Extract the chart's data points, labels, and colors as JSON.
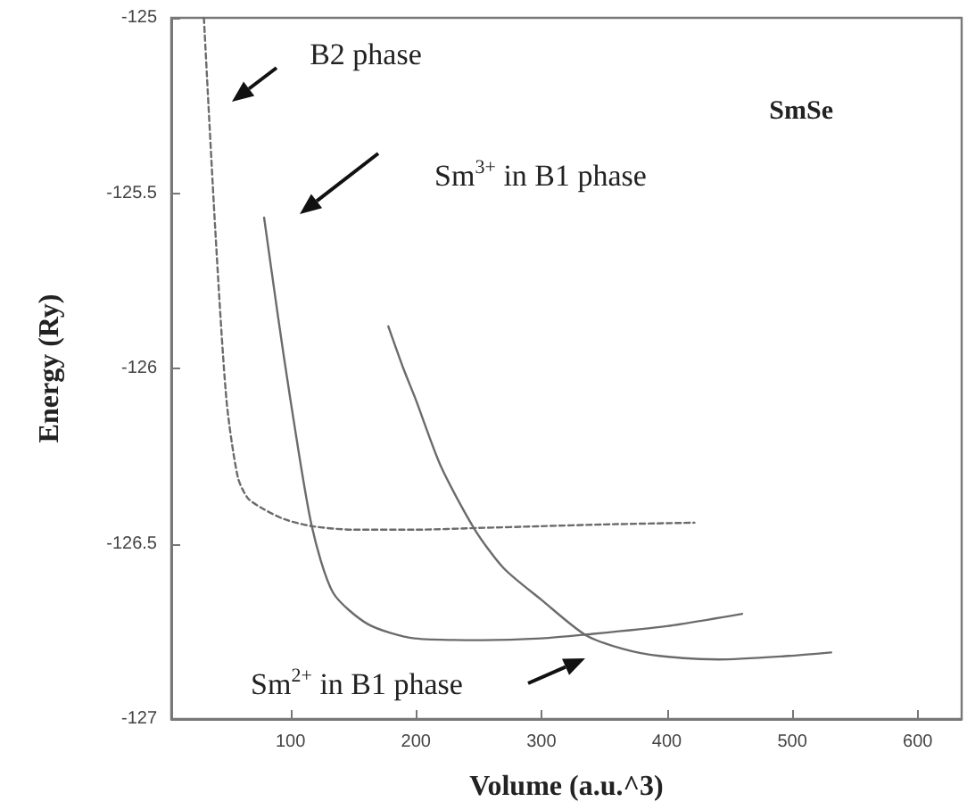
{
  "chart_data": {
    "type": "line",
    "title": "SmSe",
    "xlabel": "Volume (a.u.^3)",
    "ylabel": "Energy (Ry)",
    "xlim": [
      5,
      635
    ],
    "ylim": [
      -127,
      -125
    ],
    "xticks": [
      100,
      200,
      300,
      400,
      500,
      600
    ],
    "yticks": [
      -127,
      -126.5,
      -126,
      -125.5,
      -125
    ],
    "grid": false,
    "marker": "none",
    "series": [
      {
        "color": "#6b6b6b",
        "line_style": "dashed",
        "x": [
          31,
          40,
          49,
          58,
          66,
          78,
          95,
          117,
          150,
          200,
          250,
          300,
          350,
          422
        ],
        "values": [
          -125,
          -125.6,
          -126.09,
          -126.31,
          -126.37,
          -126.4,
          -126.43,
          -126.45,
          -126.46,
          -126.46,
          -126.455,
          -126.45,
          -126.445,
          -126.44
        ]
      },
      {
        "color": "#6b6b6b",
        "line_style": "solid",
        "x": [
          79,
          90,
          100,
          117,
          134,
          162,
          199,
          253,
          300,
          333,
          400,
          460
        ],
        "values": [
          -125.57,
          -125.85,
          -126.09,
          -126.45,
          -126.64,
          -126.73,
          -126.77,
          -126.775,
          -126.77,
          -126.76,
          -126.735,
          -126.7
        ]
      },
      {
        "color": "#6b6b6b",
        "line_style": "solid",
        "x": [
          178,
          190,
          200,
          220,
          247,
          270,
          300,
          335,
          365,
          394,
          441,
          497,
          531
        ],
        "values": [
          -125.88,
          -126.0,
          -126.09,
          -126.28,
          -126.46,
          -126.57,
          -126.66,
          -126.76,
          -126.8,
          -126.82,
          -126.83,
          -126.82,
          -126.81
        ]
      }
    ],
    "annotations": [
      "B2 phase",
      "Sm$^{3+}$ in B1 phase",
      "Sm$^{2+}$ in B1 phase"
    ]
  }
}
